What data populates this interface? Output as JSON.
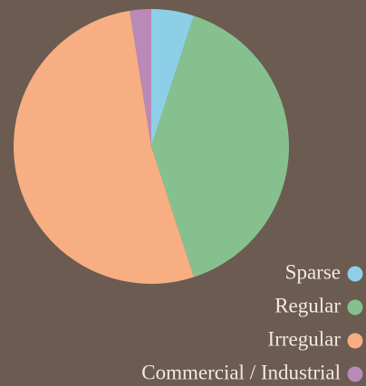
{
  "chart_data": {
    "type": "pie",
    "categories": [
      "Sparse",
      "Regular",
      "Irregular",
      "Commercial / Industrial"
    ],
    "values": [
      5,
      40,
      52.5,
      2.5
    ],
    "colors": [
      "#8ecfe8",
      "#87c08f",
      "#f7ae82",
      "#b98ab8"
    ],
    "legend": "bottom-right"
  }
}
